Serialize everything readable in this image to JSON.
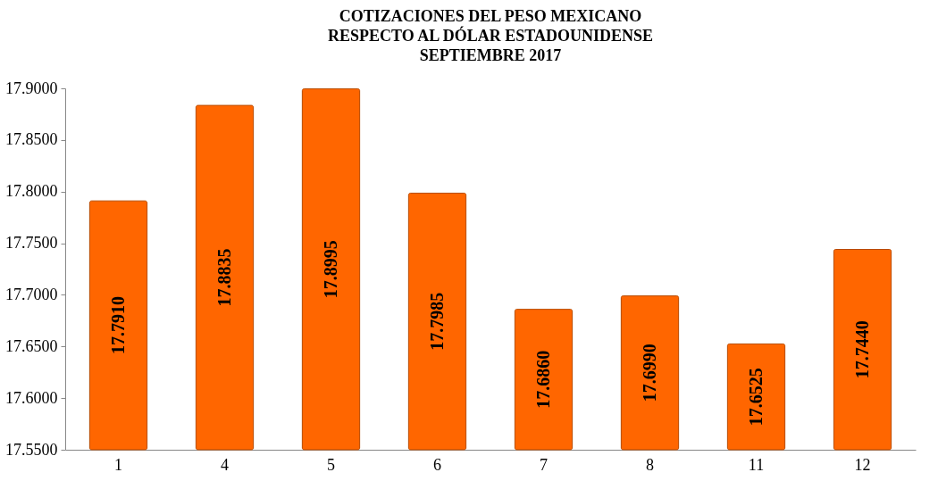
{
  "chart_data": {
    "type": "bar",
    "title": [
      "COTIZACIONES DEL PESO MEXICANO",
      "RESPECTO AL DÓLAR ESTADOUNIDENSE",
      "SEPTIEMBRE 2017"
    ],
    "categories": [
      "1",
      "4",
      "5",
      "6",
      "7",
      "8",
      "11",
      "12"
    ],
    "values": [
      17.791,
      17.8835,
      17.8995,
      17.7985,
      17.686,
      17.699,
      17.6525,
      17.744
    ],
    "value_labels": [
      "17.7910",
      "17.8835",
      "17.8995",
      "17.7985",
      "17.6860",
      "17.6990",
      "17.6525",
      "17.7440"
    ],
    "color": "#ff6600",
    "ylim": [
      17.55,
      17.9
    ],
    "yticks": [
      {
        "value": 17.55,
        "label": "17.5500"
      },
      {
        "value": 17.6,
        "label": "17.6000"
      },
      {
        "value": 17.65,
        "label": "17.6500"
      },
      {
        "value": 17.7,
        "label": "17.7000"
      },
      {
        "value": 17.75,
        "label": "17.7500"
      },
      {
        "value": 17.8,
        "label": "17.8000"
      },
      {
        "value": 17.85,
        "label": "17.8500"
      },
      {
        "value": 17.9,
        "label": "17.9000"
      }
    ],
    "grid": false
  }
}
